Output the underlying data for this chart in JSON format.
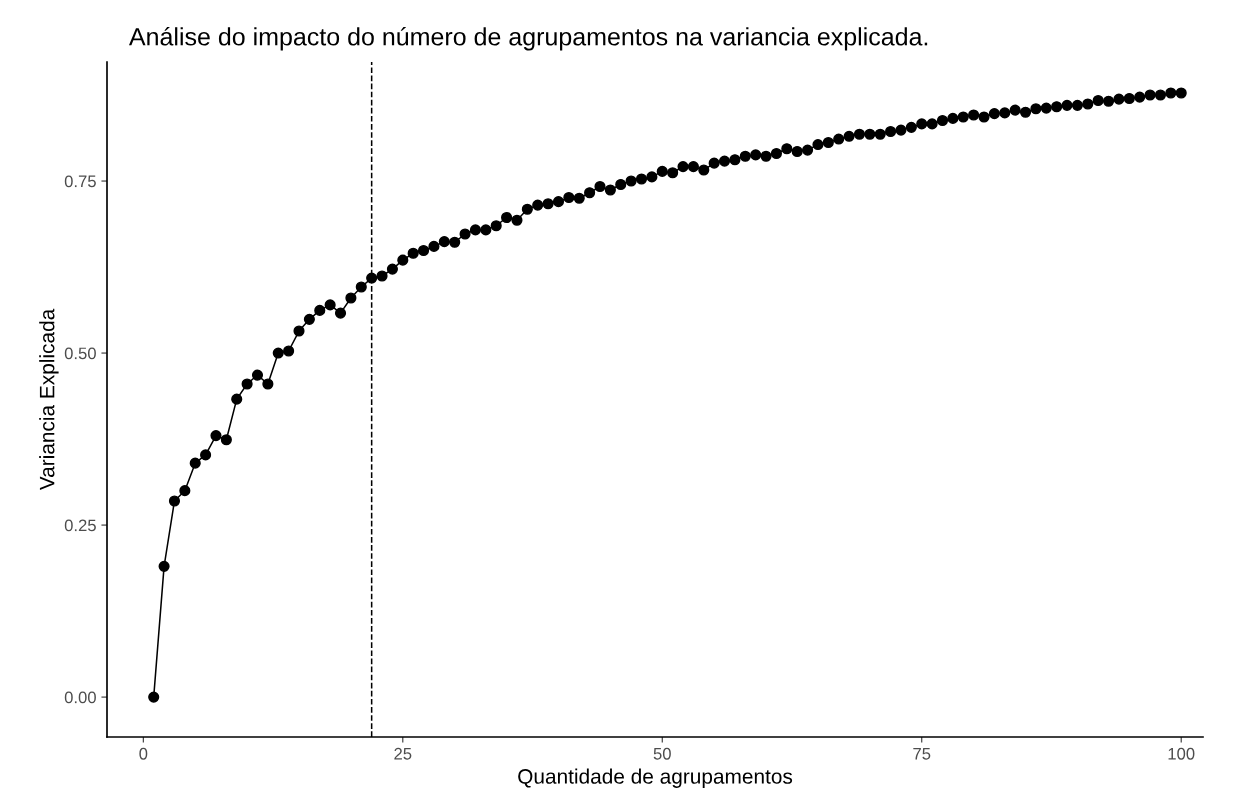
{
  "chart_data": {
    "type": "line",
    "title": "Análise do impacto do número de agrupamentos na variancia explicada.",
    "xlabel": "Quantidade de agrupamentos",
    "ylabel": "Variancia Explicada",
    "x": [
      1,
      2,
      3,
      4,
      5,
      6,
      7,
      8,
      9,
      10,
      11,
      12,
      13,
      14,
      15,
      16,
      17,
      18,
      19,
      20,
      21,
      22,
      23,
      24,
      25,
      26,
      27,
      28,
      29,
      30,
      31,
      32,
      33,
      34,
      35,
      36,
      37,
      38,
      39,
      40,
      41,
      42,
      43,
      44,
      45,
      46,
      47,
      48,
      49,
      50,
      51,
      52,
      53,
      54,
      55,
      56,
      57,
      58,
      59,
      60,
      61,
      62,
      63,
      64,
      65,
      66,
      67,
      68,
      69,
      70,
      71,
      72,
      73,
      74,
      75,
      76,
      77,
      78,
      79,
      80,
      81,
      82,
      83,
      84,
      85,
      86,
      87,
      88,
      89,
      90,
      91,
      92,
      93,
      94,
      95,
      96,
      97,
      98,
      99,
      100
    ],
    "series": [
      {
        "color": "#000000",
        "values": [
          0.0,
          0.19,
          0.285,
          0.3,
          0.34,
          0.352,
          0.38,
          0.374,
          0.433,
          0.455,
          0.468,
          0.455,
          0.5,
          0.503,
          0.532,
          0.549,
          0.562,
          0.57,
          0.558,
          0.58,
          0.596,
          0.609,
          0.612,
          0.622,
          0.635,
          0.645,
          0.649,
          0.655,
          0.662,
          0.661,
          0.673,
          0.679,
          0.679,
          0.685,
          0.697,
          0.693,
          0.709,
          0.715,
          0.717,
          0.72,
          0.726,
          0.725,
          0.733,
          0.742,
          0.737,
          0.745,
          0.75,
          0.753,
          0.756,
          0.764,
          0.762,
          0.771,
          0.771,
          0.766,
          0.776,
          0.779,
          0.781,
          0.786,
          0.788,
          0.786,
          0.79,
          0.797,
          0.793,
          0.795,
          0.803,
          0.806,
          0.811,
          0.815,
          0.818,
          0.818,
          0.818,
          0.822,
          0.824,
          0.828,
          0.833,
          0.833,
          0.838,
          0.841,
          0.843,
          0.846,
          0.843,
          0.848,
          0.849,
          0.853,
          0.85,
          0.855,
          0.856,
          0.858,
          0.86,
          0.86,
          0.862,
          0.867,
          0.866,
          0.869,
          0.87,
          0.872,
          0.875,
          0.875,
          0.878,
          0.878
        ]
      }
    ],
    "marker": "circle",
    "line_style": "solid",
    "grid": false,
    "legend": false,
    "xlim": [
      -3.5,
      102.1
    ],
    "xticks": [
      0,
      25,
      50,
      75,
      100
    ],
    "ylim": [
      -0.058,
      0.923
    ],
    "yticks": [
      {
        "value": 0,
        "label": "0.00"
      },
      {
        "value": 0.25,
        "label": "0.25"
      },
      {
        "value": 0.5,
        "label": "0.50"
      },
      {
        "value": 0.75,
        "label": "0.75"
      }
    ],
    "ref_lines": [
      {
        "axis": "x",
        "value": 22,
        "color": "#000000",
        "line_style": "dashed"
      }
    ]
  }
}
